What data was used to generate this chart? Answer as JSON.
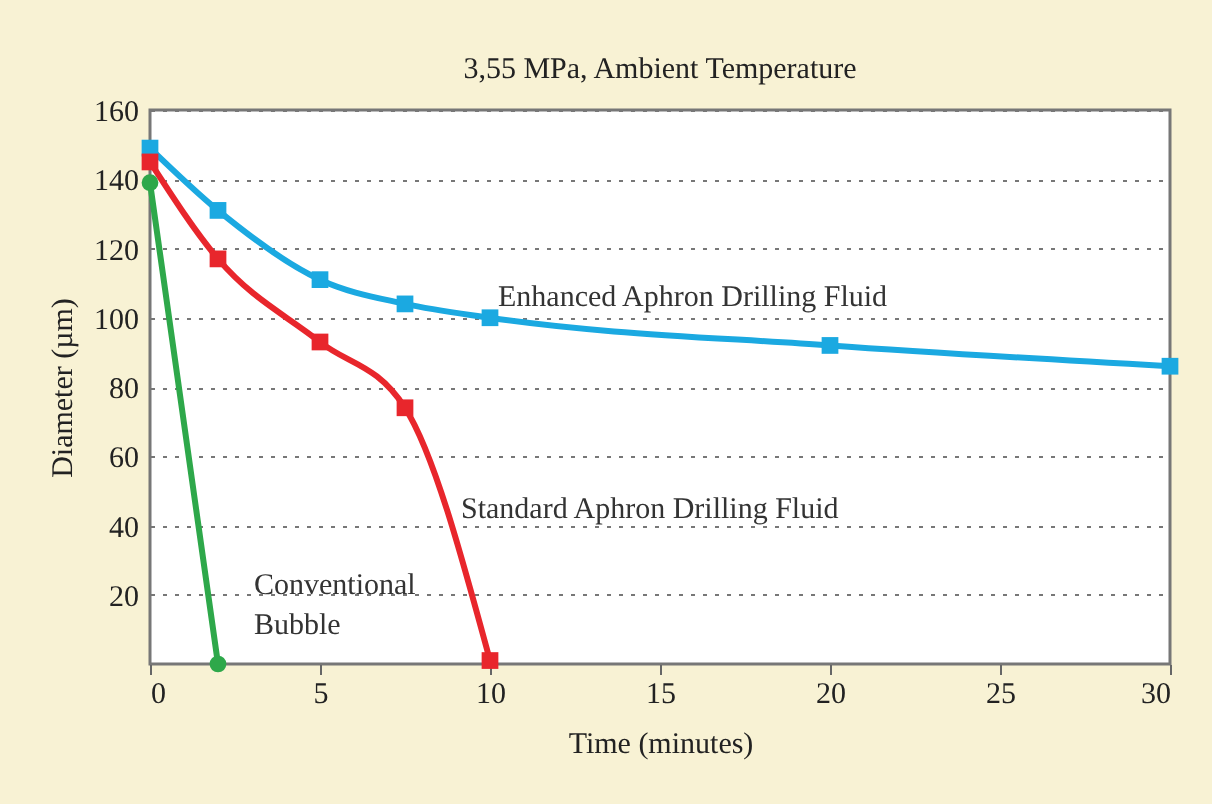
{
  "chart_data": {
    "type": "line",
    "title": "3,55 MPa, Ambient Temperature",
    "xlabel": "Time (minutes)",
    "ylabel": "Diameter (µm)",
    "xlim": [
      0,
      30
    ],
    "xticks": [
      0,
      5,
      10,
      15,
      20,
      25,
      30
    ],
    "ylim": [
      0,
      160
    ],
    "yticks": [
      20,
      40,
      60,
      80,
      100,
      120,
      140,
      160
    ],
    "grid": "y",
    "line_style": "solid",
    "series": [
      {
        "name": "Enhanced Aphron Drilling Fluid",
        "color": "#1ba9e1",
        "marker": "square",
        "x": [
          0,
          2,
          5,
          7.5,
          10,
          20,
          30
        ],
        "values": [
          149,
          131,
          111,
          104,
          100,
          92,
          86
        ]
      },
      {
        "name": "Standard Aphron Drilling Fluid",
        "color": "#e8262c",
        "marker": "square",
        "x": [
          0,
          2,
          5,
          7.5,
          10
        ],
        "values": [
          145,
          117,
          93,
          74,
          1
        ]
      },
      {
        "name": "Conventional Bubble",
        "color": "#2ea84a",
        "marker": "circle",
        "x": [
          0,
          2
        ],
        "values": [
          139,
          0
        ]
      }
    ]
  }
}
